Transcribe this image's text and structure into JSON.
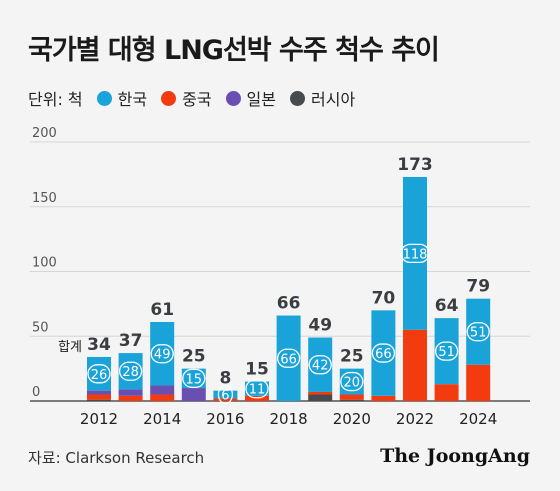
{
  "title": "국가별 대형 LNG선박 수주 척수 추이",
  "legend": {
    "unit": "단위: 척",
    "items": [
      {
        "label": "한국",
        "color": "#1aa3d9"
      },
      {
        "label": "중국",
        "color": "#f23c10"
      },
      {
        "label": "일본",
        "color": "#6a4fb3"
      },
      {
        "label": "러시아",
        "color": "#474a4f"
      }
    ]
  },
  "total_label": "합계",
  "source": "자료: Clarkson Research",
  "logo": "The JoongAng",
  "chart_data": {
    "type": "bar",
    "stacked": true,
    "title": "국가별 대형 LNG선박 수주 척수 추이",
    "unit": "척",
    "ylim": [
      0,
      200
    ],
    "yticks": [
      0,
      50,
      100,
      150,
      200
    ],
    "categories": [
      "2012",
      "2013",
      "2014",
      "2015",
      "2016",
      "2017",
      "2018",
      "2019",
      "2020",
      "2021",
      "2022",
      "2023",
      "2024"
    ],
    "xtick_labels": [
      "2012",
      "2014",
      "2016",
      "2018",
      "2020",
      "2022",
      "2024"
    ],
    "series": [
      {
        "name": "러시아",
        "color": "#474a4f",
        "values": [
          1,
          0,
          0,
          0,
          0,
          0,
          0,
          5,
          1,
          0,
          0,
          0,
          0
        ]
      },
      {
        "name": "중국",
        "color": "#f23c10",
        "values": [
          4,
          4,
          5,
          0,
          2,
          4,
          0,
          2,
          4,
          4,
          55,
          13,
          28
        ]
      },
      {
        "name": "일본",
        "color": "#6a4fb3",
        "values": [
          3,
          5,
          7,
          10,
          0,
          0,
          0,
          0,
          0,
          0,
          0,
          0,
          0
        ]
      },
      {
        "name": "한국",
        "color": "#1aa3d9",
        "values": [
          26,
          28,
          49,
          15,
          6,
          11,
          66,
          42,
          20,
          66,
          118,
          51,
          51
        ]
      }
    ],
    "totals": [
      34,
      37,
      61,
      25,
      8,
      15,
      66,
      49,
      25,
      70,
      173,
      64,
      79
    ],
    "korea_labels": [
      "26",
      "28",
      "49",
      "15",
      "6",
      "11",
      "66",
      "42",
      "20",
      "66",
      "118",
      "51",
      "51"
    ]
  }
}
